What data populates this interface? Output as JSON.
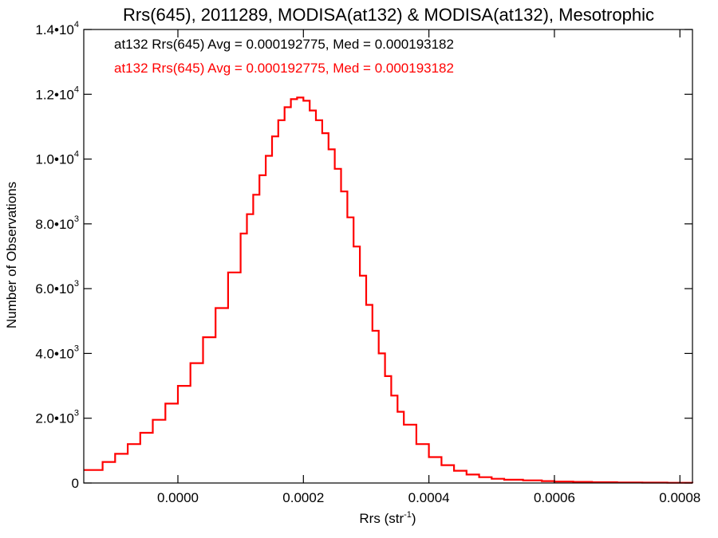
{
  "chart_data": {
    "type": "line",
    "title": "Rrs(645), 2011289, MODISA(at132) & MODISA(at132), Mesotrophic",
    "xlabel": "Rrs (str",
    "xlabel_sup": "-1",
    "xlabel_tail": ")",
    "ylabel": "Number of Observations",
    "xlim": [
      -0.00015,
      0.00082
    ],
    "ylim": [
      0,
      14000
    ],
    "grid": false,
    "legend_placement": "top-left",
    "x_ticks": [
      {
        "value": 0.0,
        "label": "0.0000"
      },
      {
        "value": 0.0002,
        "label": "0.0002"
      },
      {
        "value": 0.0004,
        "label": "0.0004"
      },
      {
        "value": 0.0006,
        "label": "0.0006"
      },
      {
        "value": 0.0008,
        "label": "0.0008"
      }
    ],
    "y_ticks": [
      {
        "value": 0,
        "mant": "0",
        "exp": ""
      },
      {
        "value": 2000,
        "mant": "2.0•10",
        "exp": "3"
      },
      {
        "value": 4000,
        "mant": "4.0•10",
        "exp": "3"
      },
      {
        "value": 6000,
        "mant": "6.0•10",
        "exp": "3"
      },
      {
        "value": 8000,
        "mant": "8.0•10",
        "exp": "3"
      },
      {
        "value": 10000,
        "mant": "1.0•10",
        "exp": "4"
      },
      {
        "value": 12000,
        "mant": "1.2•10",
        "exp": "4"
      },
      {
        "value": 14000,
        "mant": "1.4•10",
        "exp": "4"
      }
    ],
    "annotations": [
      {
        "text": "at132 Rrs(645) Avg = 0.000192775, Med = 0.000193182",
        "color": "#000000"
      },
      {
        "text": "at132 Rrs(645) Avg = 0.000192775, Med = 0.000193182",
        "color": "#ff0000"
      }
    ],
    "series": [
      {
        "color": "#ff0000",
        "overlay_color": "#000000",
        "x": [
          -0.00015,
          -0.00012,
          -0.0001,
          -8e-05,
          -6e-05,
          -4e-05,
          -2e-05,
          0.0,
          2e-05,
          4e-05,
          6e-05,
          8e-05,
          0.0001,
          0.00011,
          0.00012,
          0.00013,
          0.00014,
          0.00015,
          0.00016,
          0.00017,
          0.00018,
          0.00019,
          0.0002,
          0.00021,
          0.00022,
          0.00023,
          0.00024,
          0.00025,
          0.00026,
          0.00027,
          0.00028,
          0.00029,
          0.0003,
          0.00031,
          0.00032,
          0.00033,
          0.00034,
          0.00035,
          0.00036,
          0.00038,
          0.0004,
          0.00042,
          0.00044,
          0.00046,
          0.00048,
          0.0005,
          0.00052,
          0.00055,
          0.00058,
          0.0006,
          0.00063,
          0.00066,
          0.0007,
          0.00074,
          0.00078,
          0.00082
        ],
        "values": [
          400,
          650,
          900,
          1200,
          1550,
          1950,
          2450,
          3000,
          3700,
          4500,
          5400,
          6500,
          7700,
          8300,
          8900,
          9500,
          10100,
          10700,
          11200,
          11600,
          11850,
          11900,
          11800,
          11500,
          11200,
          10800,
          10300,
          9700,
          9000,
          8200,
          7300,
          6400,
          5500,
          4700,
          4000,
          3300,
          2700,
          2200,
          1800,
          1200,
          800,
          550,
          380,
          260,
          180,
          130,
          100,
          80,
          60,
          45,
          35,
          25,
          18,
          12,
          8,
          5
        ]
      }
    ]
  }
}
